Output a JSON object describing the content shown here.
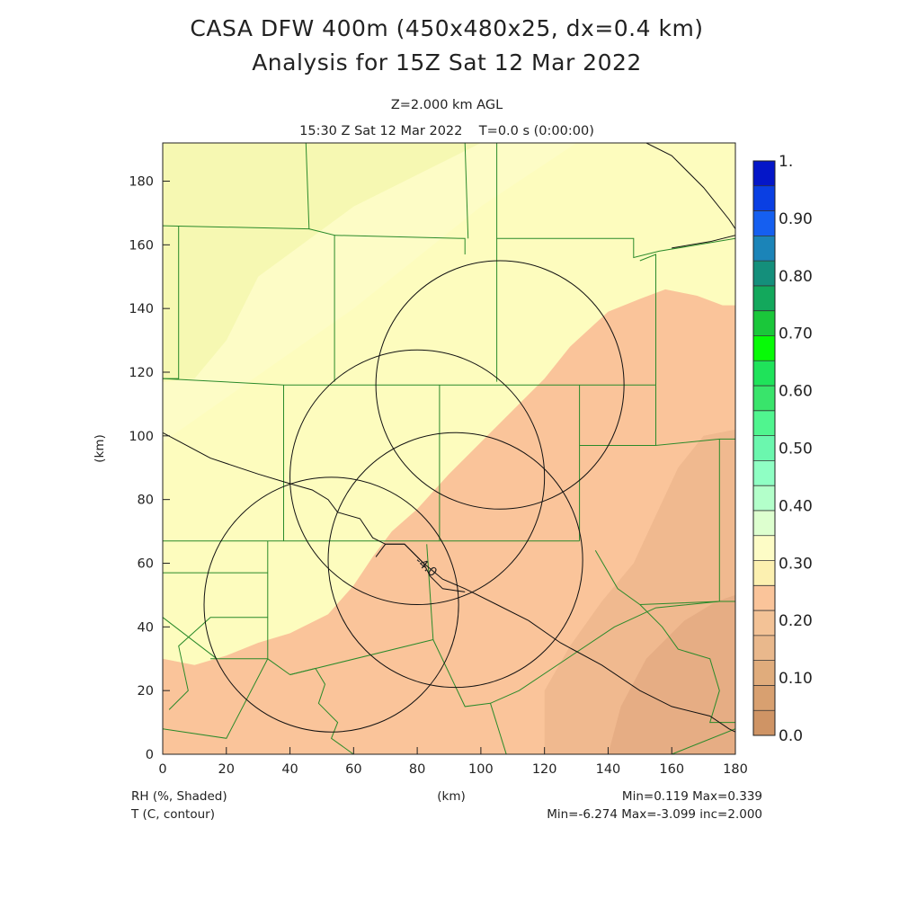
{
  "header": {
    "title_line1": "CASA DFW 400m (450x480x25, dx=0.4 km)",
    "title_line2": "Analysis for 15Z Sat 12 Mar 2022",
    "level": "Z=2.000 km AGL",
    "time": "15:30 Z Sat 12 Mar 2022    T=0.0 s (0:00:00)"
  },
  "footer": {
    "left_line1": "RH (%, Shaded)",
    "left_line2": "T (C, contour)",
    "center": "(km)",
    "right_line1": "Min=0.119  Max=0.339",
    "right_line2": "Min=-6.274  Max=-3.099  inc=2.000"
  },
  "chart_data": {
    "type": "heatmap",
    "xlabel": "(km)",
    "ylabel": "(km)",
    "xlim": [
      0,
      180
    ],
    "ylim": [
      0,
      192
    ],
    "x_ticks": [
      0,
      20,
      40,
      60,
      80,
      100,
      120,
      140,
      160,
      180
    ],
    "y_ticks": [
      0,
      20,
      40,
      60,
      80,
      100,
      120,
      140,
      160,
      180
    ],
    "shaded_field": "RH",
    "shaded_min": 0.119,
    "shaded_max": 0.339,
    "contour_field": "T",
    "contour_min": -6.274,
    "contour_max": -3.099,
    "contour_inc": 2.0,
    "contour_labels": [
      {
        "label": "-4.0",
        "x": 82,
        "y": 58
      }
    ],
    "radar_range_rings": [
      {
        "cx": 106,
        "cy": 116,
        "r": 39
      },
      {
        "cx": 80,
        "cy": 87,
        "r": 40
      },
      {
        "cx": 92,
        "cy": 61,
        "r": 40
      },
      {
        "cx": 53,
        "cy": 47,
        "r": 40
      }
    ],
    "colorbar": {
      "labels": [
        "1.",
        "0.90",
        "0.80",
        "0.70",
        "0.60",
        "0.50",
        "0.40",
        "0.30",
        "0.20",
        "0.10",
        "0.0"
      ],
      "label_values": [
        1.0,
        0.9,
        0.8,
        0.7,
        0.6,
        0.5,
        0.4,
        0.3,
        0.2,
        0.1,
        0.0
      ],
      "colors_bottom_to_top": [
        "#cf9465",
        "#d8a070",
        "#e0ac7c",
        "#e9b88c",
        "#f3c296",
        "#fac49a",
        "#fcf0b0",
        "#fdfcc6",
        "#ddffcf",
        "#b3ffca",
        "#8fffc4",
        "#6bf7ae",
        "#50f58f",
        "#39e46b",
        "#1fe35a",
        "#07fa07",
        "#1ac73a",
        "#13a85c",
        "#148f7b",
        "#1b84b8",
        "#155ff0",
        "#0a3fe3",
        "#0416c8"
      ]
    },
    "rh_regions": [
      {
        "value": 0.33,
        "color": "#fdfcc6"
      },
      {
        "value": 0.3,
        "color": "#fdfcbe"
      },
      {
        "value": 0.27,
        "color": "#f6f8b2"
      },
      {
        "value": 0.22,
        "color": "#fac49a"
      },
      {
        "value": 0.17,
        "color": "#f0b98f"
      },
      {
        "value": 0.13,
        "color": "#e6ad84"
      }
    ]
  }
}
